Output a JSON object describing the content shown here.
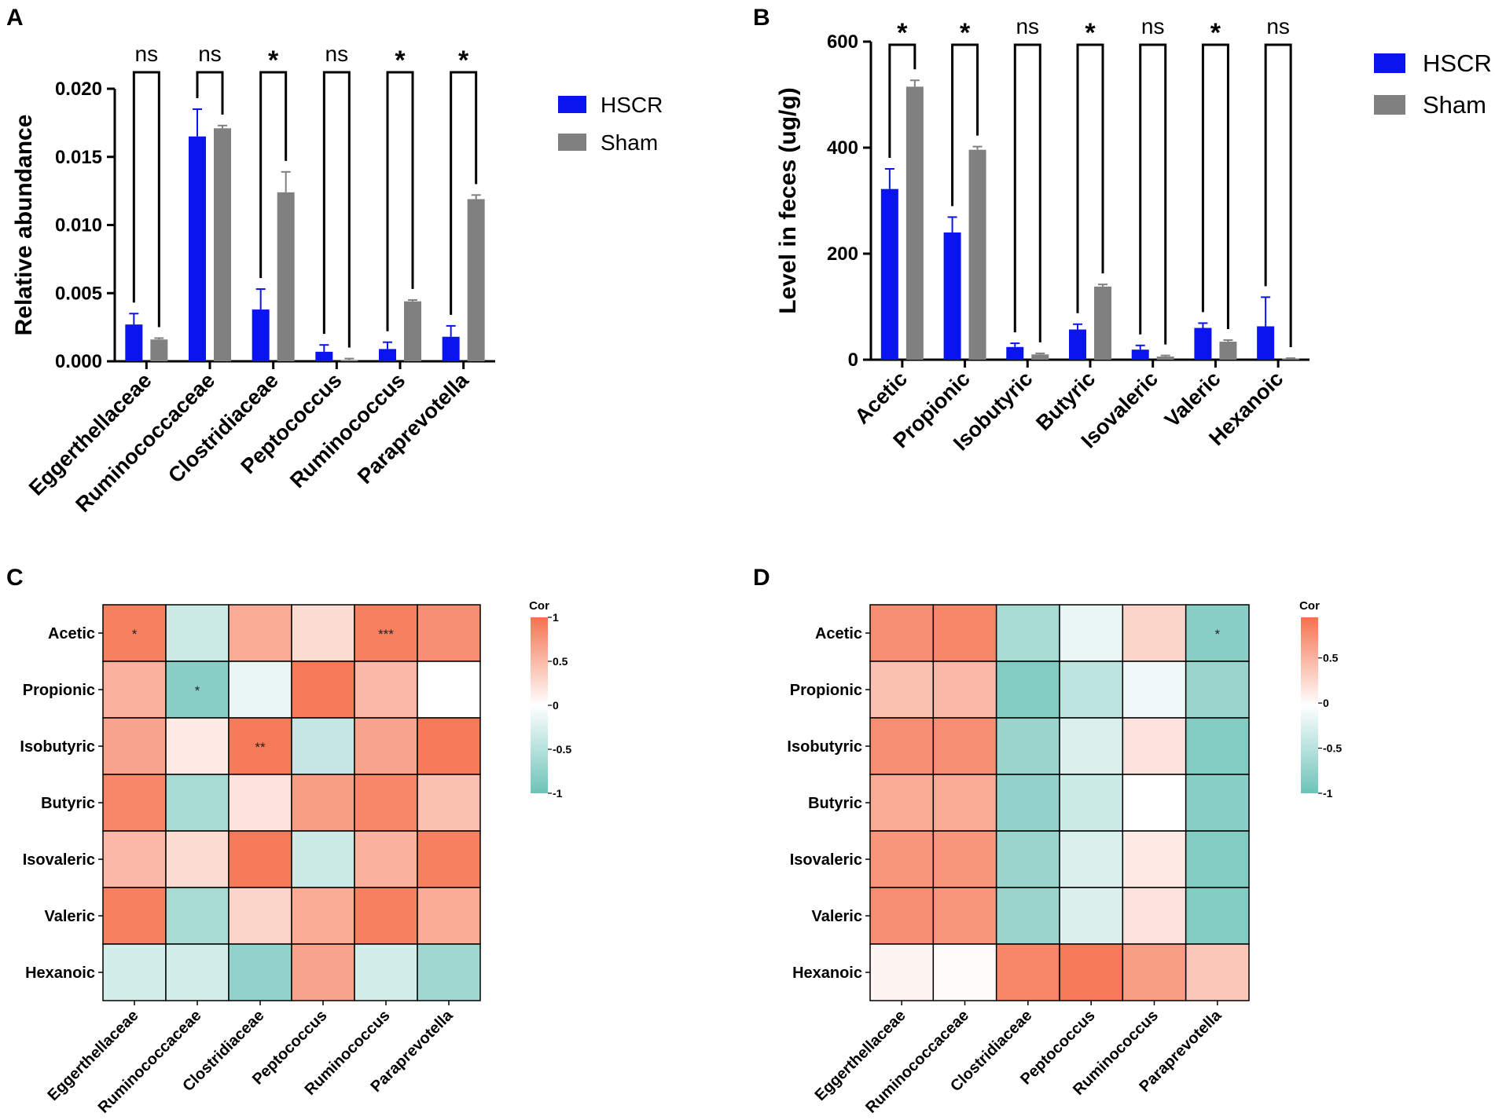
{
  "panel_labels": {
    "a": "A",
    "b": "B",
    "c": "C",
    "d": "D"
  },
  "colors": {
    "hscr": "#0a14ee",
    "sham": "#808080",
    "pos": "#f4734f",
    "neg": "#6dc3b8",
    "mid": "#ffffff"
  },
  "legend": {
    "hscr": "HSCR",
    "sham": "Sham"
  },
  "chart_data": [
    {
      "id": "A",
      "type": "bar",
      "title": "",
      "xlabel": "",
      "ylabel": "Relative abundance",
      "ylim": [
        0,
        0.02
      ],
      "yticks": [
        "0.000",
        "0.005",
        "0.010",
        "0.015",
        "0.020"
      ],
      "categories": [
        "Eggerthellaceae",
        "Ruminococcaceae",
        "Clostridiaceae",
        "Peptococcus",
        "Ruminococcus",
        "Paraprevotella"
      ],
      "series": [
        {
          "name": "HSCR",
          "values": [
            0.0027,
            0.0165,
            0.0038,
            0.0007,
            0.0009,
            0.0018
          ],
          "errors": [
            0.0008,
            0.002,
            0.0015,
            0.0005,
            0.0005,
            0.0008
          ]
        },
        {
          "name": "Sham",
          "values": [
            0.0016,
            0.0171,
            0.0124,
            0.0001,
            0.0044,
            0.0119
          ],
          "errors": [
            0.0001,
            0.0002,
            0.0015,
            0.0001,
            0.0001,
            0.0003
          ]
        }
      ],
      "significance": [
        "ns",
        "ns",
        "*",
        "ns",
        "*",
        "*"
      ]
    },
    {
      "id": "B",
      "type": "bar",
      "title": "",
      "xlabel": "",
      "ylabel": "Level in feces (ug/g)",
      "ylim": [
        0,
        600
      ],
      "yticks": [
        "0",
        "200",
        "400",
        "600"
      ],
      "categories": [
        "Acetic",
        "Propionic",
        "Isobutyric",
        "Butyric",
        "Isovaleric",
        "Valeric",
        "Hexanoic"
      ],
      "series": [
        {
          "name": "HSCR",
          "values": [
            322,
            240,
            24,
            57,
            19,
            60,
            63
          ],
          "errors": [
            38,
            29,
            7,
            10,
            8,
            9,
            55
          ]
        },
        {
          "name": "Sham",
          "values": [
            515,
            396,
            10,
            138,
            6,
            34,
            2
          ],
          "errors": [
            12,
            6,
            2,
            4,
            2,
            3,
            1
          ]
        }
      ],
      "significance": [
        "*",
        "*",
        "ns",
        "*",
        "ns",
        "*",
        "ns"
      ]
    },
    {
      "id": "C",
      "type": "heatmap",
      "legend_title": "Cor",
      "colorbar_ticks": [
        "1",
        "0.5",
        "0",
        "-0.5",
        "-1"
      ],
      "rows": [
        "Acetic",
        "Propionic",
        "Isobutyric",
        "Butyric",
        "Isovaleric",
        "Valeric",
        "Hexanoic"
      ],
      "cols": [
        "Eggerthellaceae",
        "Ruminococcaceae",
        "Clostridiaceae",
        "Peptococcus",
        "Ruminococcus",
        "Paraprevotella"
      ],
      "values": [
        [
          0.9,
          -0.35,
          0.6,
          0.25,
          0.9,
          0.8
        ],
        [
          0.55,
          -0.8,
          -0.15,
          0.95,
          0.5,
          0.0
        ],
        [
          0.65,
          0.15,
          0.95,
          -0.4,
          0.65,
          0.95
        ],
        [
          0.85,
          -0.6,
          0.2,
          0.7,
          0.85,
          0.45
        ],
        [
          0.5,
          0.25,
          0.95,
          -0.35,
          0.55,
          0.9
        ],
        [
          0.9,
          -0.6,
          0.3,
          0.6,
          0.9,
          0.6
        ],
        [
          -0.3,
          -0.3,
          -0.75,
          0.65,
          -0.3,
          -0.65
        ]
      ],
      "annotations": [
        [
          "*",
          "",
          "",
          "",
          "***",
          ""
        ],
        [
          "",
          "*",
          "",
          "",
          "",
          ""
        ],
        [
          "",
          "",
          "**",
          "",
          "",
          ""
        ],
        [
          "",
          "",
          "",
          "",
          "",
          ""
        ],
        [
          "",
          "",
          "",
          "",
          "",
          ""
        ],
        [
          "",
          "",
          "",
          "",
          "",
          ""
        ],
        [
          "",
          "",
          "",
          "",
          "",
          ""
        ]
      ]
    },
    {
      "id": "D",
      "type": "heatmap",
      "legend_title": "Cor",
      "colorbar_ticks": [
        "0.5",
        "0",
        "-0.5",
        "-1"
      ],
      "rows": [
        "Acetic",
        "Propionic",
        "Isobutyric",
        "Butyric",
        "Isovaleric",
        "Valeric",
        "Hexanoic"
      ],
      "cols": [
        "Eggerthellaceae",
        "Ruminococcaceae",
        "Clostridiaceae",
        "Peptococcus",
        "Ruminococcus",
        "Paraprevotella"
      ],
      "values": [
        [
          0.8,
          0.85,
          -0.6,
          -0.15,
          0.3,
          -0.8
        ],
        [
          0.45,
          0.5,
          -0.85,
          -0.45,
          -0.1,
          -0.7
        ],
        [
          0.8,
          0.8,
          -0.7,
          -0.25,
          0.2,
          -0.85
        ],
        [
          0.6,
          0.6,
          -0.75,
          -0.35,
          0.0,
          -0.8
        ],
        [
          0.75,
          0.75,
          -0.7,
          -0.25,
          0.15,
          -0.85
        ],
        [
          0.8,
          0.75,
          -0.7,
          -0.25,
          0.2,
          -0.85
        ],
        [
          0.08,
          0.03,
          0.85,
          0.95,
          0.7,
          0.4
        ]
      ],
      "annotations": [
        [
          "",
          "",
          "",
          "",
          "",
          "*"
        ],
        [
          "",
          "",
          "",
          "",
          "",
          ""
        ],
        [
          "",
          "",
          "",
          "",
          "",
          ""
        ],
        [
          "",
          "",
          "",
          "",
          "",
          ""
        ],
        [
          "",
          "",
          "",
          "",
          "",
          ""
        ],
        [
          "",
          "",
          "",
          "",
          "",
          ""
        ],
        [
          "",
          "",
          "",
          "",
          "",
          ""
        ]
      ]
    }
  ]
}
